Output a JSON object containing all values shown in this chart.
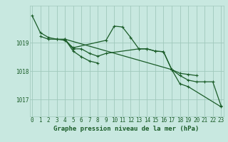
{
  "background_color": "#c8e8e0",
  "grid_color": "#a0c8bc",
  "line_color": "#1a5c28",
  "xlabel": "Graphe pression niveau de la mer (hPa)",
  "xlabel_fontsize": 6.5,
  "tick_fontsize": 5.5,
  "yticks": [
    1017,
    1018,
    1019
  ],
  "ylim": [
    1016.4,
    1020.3
  ],
  "xlim": [
    -0.3,
    23.3
  ],
  "series": [
    [
      1019.95,
      1019.35,
      1019.18,
      1019.12,
      1019.12,
      1018.7,
      1018.5,
      1018.35,
      1018.28,
      null,
      null,
      null,
      null,
      null,
      null,
      null,
      null,
      null,
      null,
      null,
      null,
      null,
      null,
      null
    ],
    [
      null,
      1019.22,
      1019.12,
      1019.12,
      1019.08,
      1018.82,
      null,
      null,
      null,
      1019.08,
      1019.58,
      1019.55,
      1019.18,
      1018.78,
      1018.78,
      1018.7,
      1018.68,
      1018.05,
      1017.92,
      1017.88,
      1017.84,
      null,
      null,
      null
    ],
    [
      null,
      null,
      null,
      null,
      1019.12,
      1018.78,
      1018.78,
      1018.62,
      1018.52,
      1018.62,
      null,
      null,
      null,
      1018.78,
      1018.78,
      1018.7,
      1018.68,
      1018.05,
      1017.84,
      1017.68,
      1017.62,
      1017.62,
      1017.62,
      1016.78
    ],
    [
      null,
      null,
      null,
      null,
      1019.12,
      null,
      null,
      null,
      null,
      null,
      null,
      null,
      null,
      null,
      null,
      null,
      null,
      1018.05,
      1017.55,
      1017.45,
      null,
      null,
      null,
      1016.74
    ]
  ]
}
